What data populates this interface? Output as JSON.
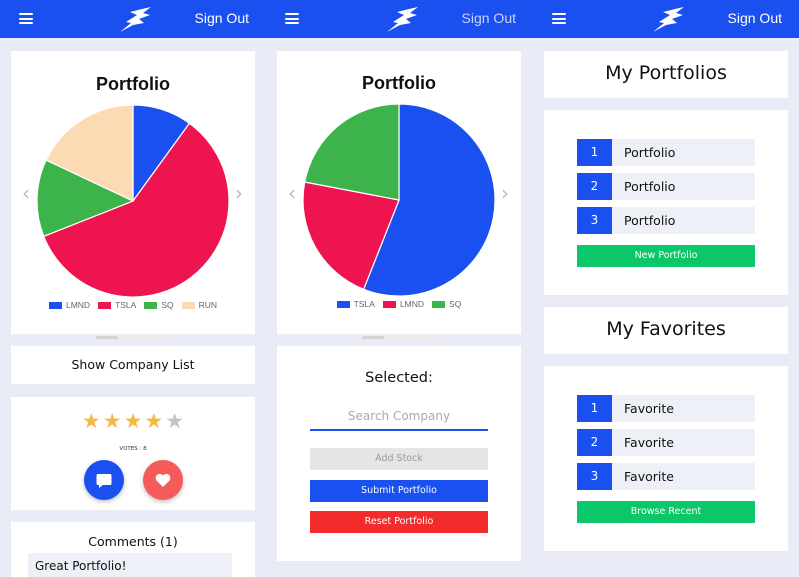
{
  "nav": {
    "sign_out_label": "Sign Out"
  },
  "colors": {
    "brand_blue": "#1a4ff0",
    "green": "#0cc76a",
    "red": "#f22c2c",
    "pink": "#ee1450",
    "peach": "#fcdab4",
    "mid_green": "#3cb44b"
  },
  "panel1": {
    "chart_title": "Portfolio",
    "show_company_list_label": "Show Company List",
    "votes_label": "VOTES : 8",
    "rating": 4,
    "rating_max": 5,
    "comments_title": "Comments (1)",
    "comment_text": "Great Portfolio!",
    "chart_data": {
      "type": "pie",
      "title": "Portfolio",
      "categories": [
        "LMND",
        "TSLA",
        "SQ",
        "RUN"
      ],
      "values": [
        10,
        59,
        13,
        18
      ],
      "colors": [
        "#1a4ff0",
        "#ee1450",
        "#3cb44b",
        "#fcdab4"
      ],
      "legend": "bottom"
    }
  },
  "panel2": {
    "chart_title": "Portfolio",
    "selected_label": "Selected:",
    "search_placeholder": "Search Company",
    "add_stock_label": "Add Stock",
    "submit_label": "Submit Portfolio",
    "reset_label": "Reset Portfolio",
    "chart_data": {
      "type": "pie",
      "title": "Portfolio",
      "categories": [
        "TSLA",
        "LMND",
        "SQ"
      ],
      "values": [
        56,
        22,
        22
      ],
      "colors": [
        "#1a4ff0",
        "#ee1450",
        "#3cb44b"
      ],
      "legend": "bottom"
    }
  },
  "panel3": {
    "portfolios_title": "My Portfolios",
    "portfolios": [
      {
        "num": "1",
        "label": "Portfolio"
      },
      {
        "num": "2",
        "label": "Portfolio"
      },
      {
        "num": "3",
        "label": "Portfolio"
      }
    ],
    "new_portfolio_label": "New Portfolio",
    "favorites_title": "My Favorites",
    "favorites": [
      {
        "num": "1",
        "label": "Favorite"
      },
      {
        "num": "2",
        "label": "Favorite"
      },
      {
        "num": "3",
        "label": "Favorite"
      }
    ],
    "browse_recent_label": "Browse Recent"
  }
}
